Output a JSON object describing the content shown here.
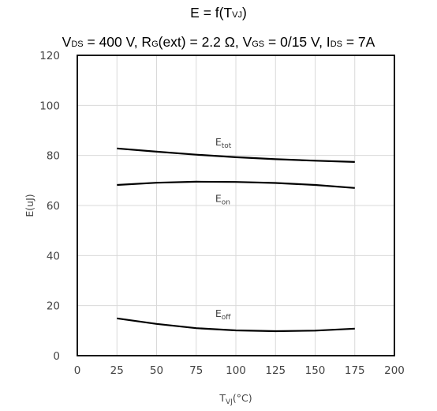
{
  "chart_data": {
    "type": "line",
    "title": {
      "line1": {
        "pre": "E = f(T",
        "sub": "VJ",
        "post": ")"
      },
      "line2": [
        {
          "main": "V",
          "sub": "DS"
        },
        {
          "main": " = 400 V, R",
          "sub": "G"
        },
        {
          "main": "(ext) = 2.2 Ω, V",
          "sub": "GS"
        },
        {
          "main": " = 0/15 V, I",
          "sub": "DS"
        },
        {
          "main": " = 7A",
          "sub": ""
        }
      ]
    },
    "xlabel": {
      "main": "T",
      "sub": "VJ",
      "post": "(°C)"
    },
    "ylabel": "E(uJ)",
    "xlim": [
      0,
      200
    ],
    "ylim": [
      0,
      120
    ],
    "xticks": [
      0,
      25,
      50,
      75,
      100,
      125,
      150,
      175,
      200
    ],
    "yticks": [
      0,
      20,
      40,
      60,
      80,
      100,
      120
    ],
    "grid": true,
    "series": [
      {
        "name": "E_tot",
        "label_main": "E",
        "label_sub": "tot",
        "label_at": [
          87,
          84
        ],
        "x": [
          25,
          50,
          75,
          100,
          125,
          150,
          175
        ],
        "y": [
          82.8,
          81.5,
          80.3,
          79.3,
          78.5,
          77.9,
          77.4
        ]
      },
      {
        "name": "E_on",
        "label_main": "E",
        "label_sub": "on",
        "label_at": [
          87,
          61.5
        ],
        "x": [
          25,
          50,
          75,
          100,
          125,
          150,
          175
        ],
        "y": [
          68.2,
          69.1,
          69.5,
          69.4,
          69.0,
          68.2,
          67.0
        ]
      },
      {
        "name": "E_off",
        "label_main": "E",
        "label_sub": "off",
        "label_at": [
          87,
          15.5
        ],
        "x": [
          25,
          50,
          75,
          100,
          125,
          150,
          175
        ],
        "y": [
          14.9,
          12.7,
          11.0,
          10.1,
          9.8,
          10.0,
          10.8
        ]
      }
    ]
  }
}
